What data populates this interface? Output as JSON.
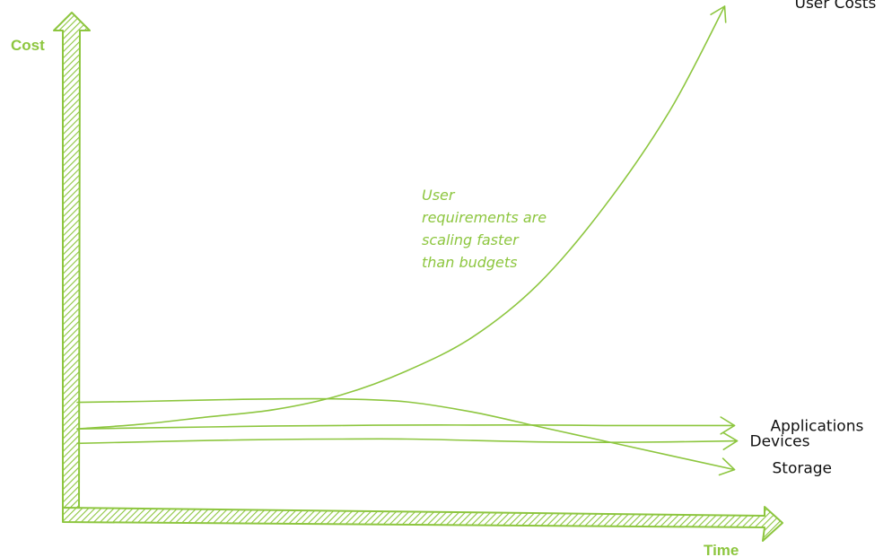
{
  "chart_data": {
    "type": "line",
    "xlabel": "Time",
    "ylabel": "Cost",
    "x": [
      0,
      1,
      2,
      3,
      4,
      5,
      6,
      7,
      8,
      9,
      10
    ],
    "ylim": [
      0,
      100
    ],
    "xlim": [
      0,
      10
    ],
    "grid": false,
    "legend": "end-of-line labels",
    "series": [
      {
        "name": "User Costs",
        "values": [
          18,
          19,
          20.5,
          22,
          25,
          30,
          37,
          48,
          64,
          84,
          110
        ]
      },
      {
        "name": "Applications",
        "values": [
          18,
          18.2,
          18.4,
          18.6,
          18.7,
          18.8,
          18.8,
          18.8,
          18.7,
          18.7,
          18.7
        ]
      },
      {
        "name": "Devices",
        "values": [
          15,
          15.3,
          15.6,
          15.8,
          15.9,
          15.9,
          15.6,
          15.3,
          15.2,
          15.3,
          15.5
        ]
      },
      {
        "name": "Storage",
        "values": [
          23.5,
          23.7,
          24,
          24.2,
          24.2,
          23.6,
          21.5,
          18.5,
          15.5,
          12.5,
          9.5
        ]
      }
    ],
    "annotations": [
      "User",
      "requirements are",
      "scaling faster",
      "than budgets"
    ]
  },
  "colors": {
    "accent": "#8dc63f",
    "label": "#111111"
  }
}
